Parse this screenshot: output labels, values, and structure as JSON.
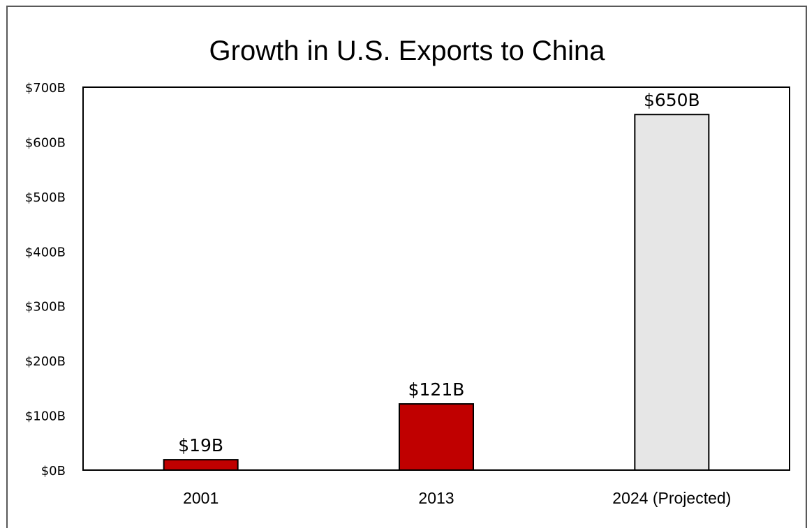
{
  "chart_data": {
    "type": "bar",
    "title": "Growth in U.S. Exports to China",
    "xlabel": "",
    "ylabel": "",
    "categories": [
      "2001",
      "2013",
      "2024 (Projected)"
    ],
    "values": [
      19,
      121,
      650
    ],
    "value_labels": [
      "$19B",
      "$121B",
      "$650B"
    ],
    "bar_colors": [
      "#c00000",
      "#c00000",
      "#e6e6e6"
    ],
    "bar_border_color": "#000000",
    "ylim": [
      0,
      700
    ],
    "yticks": [
      0,
      100,
      200,
      300,
      400,
      500,
      600,
      700
    ],
    "ytick_labels": [
      "$0B",
      "$100B",
      "$200B",
      "$300B",
      "$400B",
      "$500B",
      "$600B",
      "$700B"
    ],
    "grid": false,
    "legend": "none"
  }
}
